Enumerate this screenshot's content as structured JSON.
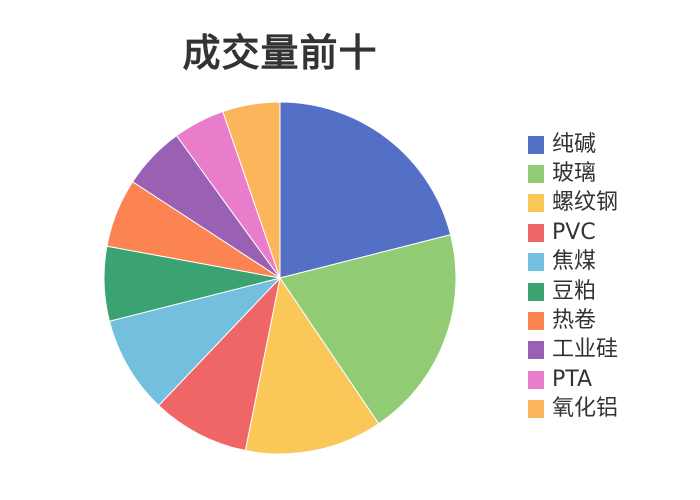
{
  "chart_data": {
    "type": "pie",
    "title": "成交量前十",
    "legend_position": "right",
    "slices": [
      {
        "label": "纯碱",
        "value": 20.0,
        "color": "#5470c6"
      },
      {
        "label": "玻璃",
        "value": 18.5,
        "color": "#91cc75"
      },
      {
        "label": "螺纹钢",
        "value": 12.0,
        "color": "#fac858"
      },
      {
        "label": "PVC",
        "value": 8.5,
        "color": "#ee6666"
      },
      {
        "label": "焦煤",
        "value": 8.5,
        "color": "#73c0de"
      },
      {
        "label": "豆粕",
        "value": 6.5,
        "color": "#3ba272"
      },
      {
        "label": "热卷",
        "value": 6.0,
        "color": "#fc8452"
      },
      {
        "label": "工业硅",
        "value": 5.5,
        "color": "#9a60b4"
      },
      {
        "label": "PTA",
        "value": 4.5,
        "color": "#ea7ccc"
      },
      {
        "label": "氧化铝",
        "value": 5.0,
        "color": "#fbb55b"
      }
    ]
  }
}
